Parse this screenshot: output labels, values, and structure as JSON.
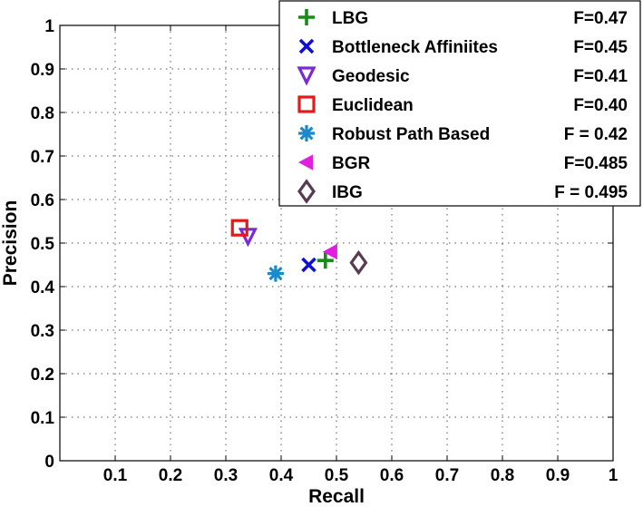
{
  "chart_data": {
    "type": "scatter",
    "title": "",
    "xlabel": "Recall",
    "ylabel": "Precision",
    "xlim": [
      0,
      1
    ],
    "ylim": [
      0,
      1
    ],
    "x_ticks": [
      "0.1",
      "0.2",
      "0.3",
      "0.4",
      "0.5",
      "0.6",
      "0.7",
      "0.8",
      "0.9",
      "1"
    ],
    "y_ticks": [
      "0",
      "0.1",
      "0.2",
      "0.3",
      "0.4",
      "0.5",
      "0.6",
      "0.7",
      "0.8",
      "0.9",
      "1"
    ],
    "grid": true,
    "legend_position": "top-right",
    "series": [
      {
        "name": "LBG",
        "score": "F=0.47",
        "marker": "plus",
        "color": "#1a8a1a",
        "x": 0.48,
        "y": 0.46
      },
      {
        "name": "Bottleneck Affiniites",
        "score": "F=0.45",
        "marker": "x",
        "color": "#1010d0",
        "x": 0.45,
        "y": 0.45
      },
      {
        "name": "Geodesic",
        "score": "F=0.41",
        "marker": "triangle-down",
        "color": "#7a2ad6",
        "x": 0.34,
        "y": 0.515
      },
      {
        "name": "Euclidean",
        "score": "F=0.40",
        "marker": "square",
        "color": "#e21a1a",
        "x": 0.325,
        "y": 0.535
      },
      {
        "name": "Robust Path Based",
        "score": "F = 0.42",
        "marker": "asterisk",
        "color": "#1a8ac8",
        "x": 0.39,
        "y": 0.43
      },
      {
        "name": "BGR",
        "score": "F=0.485",
        "marker": "triangle-left",
        "color": "#e020e0",
        "x": 0.49,
        "y": 0.48
      },
      {
        "name": "IBG",
        "score": "F = 0.495",
        "marker": "diamond",
        "color": "#5a3a52",
        "x": 0.54,
        "y": 0.455
      }
    ]
  }
}
